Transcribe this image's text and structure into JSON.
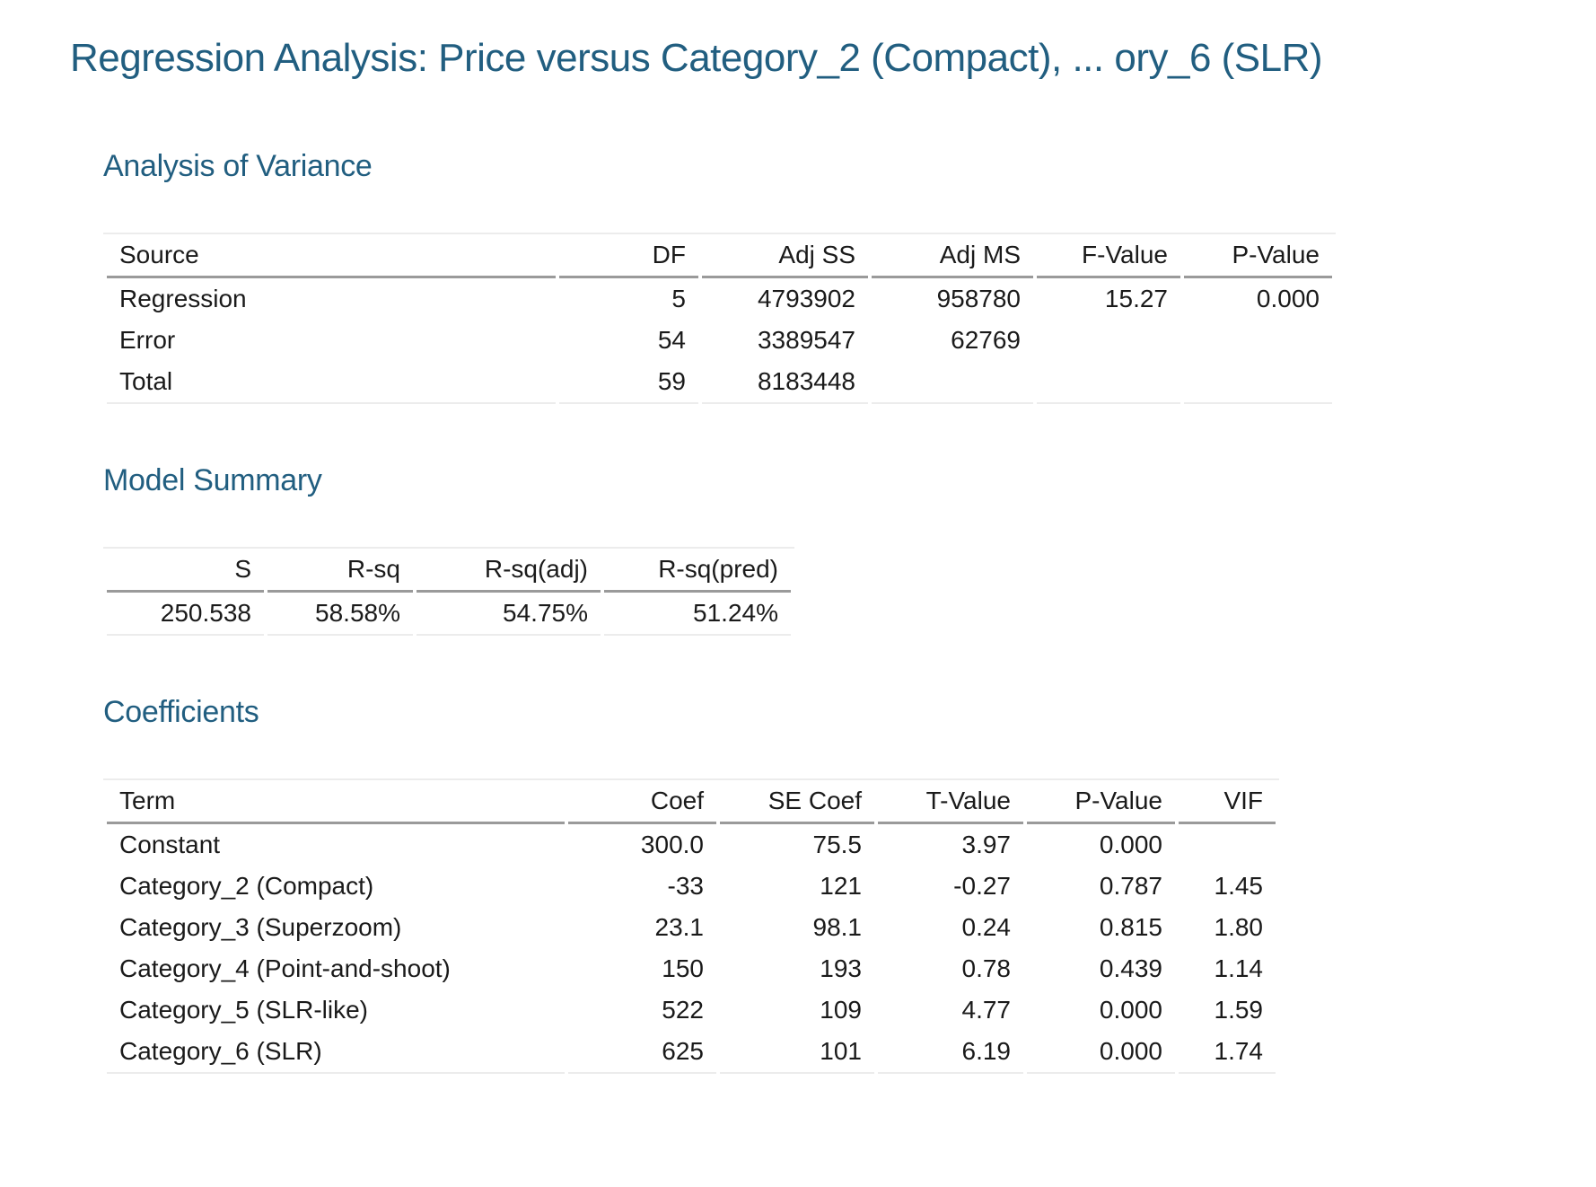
{
  "page": {
    "title": "Regression Analysis: Price versus Category_2 (Compact), ... ory_6 (SLR)"
  },
  "colors": {
    "heading_teal": "#215e80",
    "body_text": "#1a1a1a",
    "header_rule": "#9a9a9a",
    "light_rule": "#ececec",
    "background": "#ffffff"
  },
  "sections": {
    "anova": {
      "heading": "Analysis of Variance",
      "columns": [
        "Source",
        "DF",
        "Adj SS",
        "Adj MS",
        "F-Value",
        "P-Value"
      ],
      "rows": [
        [
          "Regression",
          "5",
          "4793902",
          "958780",
          "15.27",
          "0.000"
        ],
        [
          "Error",
          "54",
          "3389547",
          "62769",
          "",
          ""
        ],
        [
          "Total",
          "59",
          "8183448",
          "",
          "",
          ""
        ]
      ]
    },
    "model_summary": {
      "heading": "Model Summary",
      "columns": [
        "S",
        "R-sq",
        "R-sq(adj)",
        "R-sq(pred)"
      ],
      "rows": [
        [
          "250.538",
          "58.58%",
          "54.75%",
          "51.24%"
        ]
      ]
    },
    "coefficients": {
      "heading": "Coefficients",
      "columns": [
        "Term",
        "Coef",
        "SE Coef",
        "T-Value",
        "P-Value",
        "VIF"
      ],
      "rows": [
        [
          "Constant",
          "300.0",
          "75.5",
          "3.97",
          "0.000",
          ""
        ],
        [
          "Category_2 (Compact)",
          "-33",
          "121",
          "-0.27",
          "0.787",
          "1.45"
        ],
        [
          "Category_3 (Superzoom)",
          "23.1",
          "98.1",
          "0.24",
          "0.815",
          "1.80"
        ],
        [
          "Category_4 (Point-and-shoot)",
          "150",
          "193",
          "0.78",
          "0.439",
          "1.14"
        ],
        [
          "Category_5 (SLR-like)",
          "522",
          "109",
          "4.77",
          "0.000",
          "1.59"
        ],
        [
          "Category_6 (SLR)",
          "625",
          "101",
          "6.19",
          "0.000",
          "1.74"
        ]
      ]
    }
  }
}
